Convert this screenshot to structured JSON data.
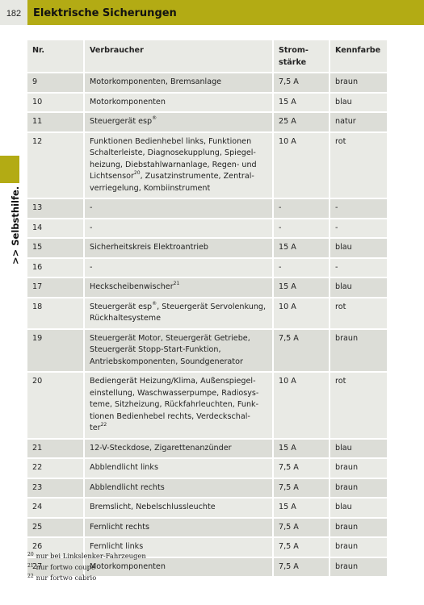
{
  "header": {
    "page_number": "182",
    "title": "Elektrische Sicherungen"
  },
  "side_tab": {
    "label": ">> Selbsthilfe."
  },
  "table": {
    "columns": [
      "Nr.",
      "Verbraucher",
      "Strom-\nstärke",
      "Kennfarbe"
    ],
    "rows": [
      {
        "nr": "9",
        "verbraucher": "Motorkomponenten, Bremsanlage",
        "strom": "7,5 A",
        "farbe": "braun"
      },
      {
        "nr": "10",
        "verbraucher": "Motorkomponenten",
        "strom": "15 A",
        "farbe": "blau"
      },
      {
        "nr": "11",
        "verbraucher": "Steuergerät esp",
        "verbraucher_sup": "®",
        "strom": "25 A",
        "farbe": "natur"
      },
      {
        "nr": "12",
        "verbraucher": "Funktionen Bedienhebel links, Funktionen\nSchalterleiste, Diagnosekupplung, Spiegel-\nheizung, Diebstahlwarnanlage, Regen- und\nLichtsensor",
        "verbraucher_sup": "20",
        "verbraucher_after": ", Zusatzinstrumente, Zentral-\nverriegelung, Kombiinstrument",
        "strom": "10 A",
        "farbe": "rot"
      },
      {
        "nr": "13",
        "verbraucher": "-",
        "strom": "-",
        "farbe": "-"
      },
      {
        "nr": "14",
        "verbraucher": "-",
        "strom": "-",
        "farbe": "-"
      },
      {
        "nr": "15",
        "verbraucher": "Sicherheitskreis Elektroantrieb",
        "strom": "15 A",
        "farbe": "blau"
      },
      {
        "nr": "16",
        "verbraucher": "-",
        "strom": "-",
        "farbe": "-"
      },
      {
        "nr": "17",
        "verbraucher": "Heckscheibenwischer",
        "verbraucher_sup": "21",
        "strom": "15 A",
        "farbe": "blau"
      },
      {
        "nr": "18",
        "verbraucher": "Steuergerät esp",
        "verbraucher_sup": "®",
        "verbraucher_after": ", Steuergerät Servolenkung,\nRückhaltesysteme",
        "strom": "10 A",
        "farbe": "rot"
      },
      {
        "nr": "19",
        "verbraucher": "Steuergerät Motor, Steuergerät Getriebe,\nSteuergerät Stopp-Start-Funktion,\nAntriebskomponenten, Soundgenerator",
        "strom": "7,5 A",
        "farbe": "braun"
      },
      {
        "nr": "20",
        "verbraucher": "Bediengerät Heizung/Klima, Außenspiegel-\neinstellung, Waschwasserpumpe, Radiosys-\nteme, Sitzheizung, Rückfahrleuchten, Funk-\ntionen Bedienhebel rechts, Verdeckschal-\nter",
        "verbraucher_sup": "22",
        "strom": "10 A",
        "farbe": "rot"
      },
      {
        "nr": "21",
        "verbraucher": "12-V-Steckdose, Zigarettenanzünder",
        "strom": "15 A",
        "farbe": "blau"
      },
      {
        "nr": "22",
        "verbraucher": "Abblendlicht links",
        "strom": "7,5 A",
        "farbe": "braun"
      },
      {
        "nr": "23",
        "verbraucher": "Abblendlicht rechts",
        "strom": "7,5 A",
        "farbe": "braun"
      },
      {
        "nr": "24",
        "verbraucher": "Bremslicht, Nebelschlussleuchte",
        "strom": "15 A",
        "farbe": "blau"
      },
      {
        "nr": "25",
        "verbraucher": "Fernlicht rechts",
        "strom": "7,5 A",
        "farbe": "braun"
      },
      {
        "nr": "26",
        "verbraucher": "Fernlicht links",
        "strom": "7,5 A",
        "farbe": "braun"
      },
      {
        "nr": "27",
        "verbraucher": "Motorkomponenten",
        "strom": "7,5 A",
        "farbe": "braun"
      }
    ]
  },
  "footnotes": [
    {
      "mark": "20",
      "text": "nur bei Linkslenker-Fahrzeugen"
    },
    {
      "mark": "21",
      "text": "nur fortwo coupé"
    },
    {
      "mark": "22",
      "text": "nur fortwo cabrio"
    }
  ],
  "colors": {
    "accent": "#b3ab14",
    "row_dark": "#dcddd7",
    "row_light": "#e9eae5",
    "page_number_bg": "#e7e8e3"
  }
}
